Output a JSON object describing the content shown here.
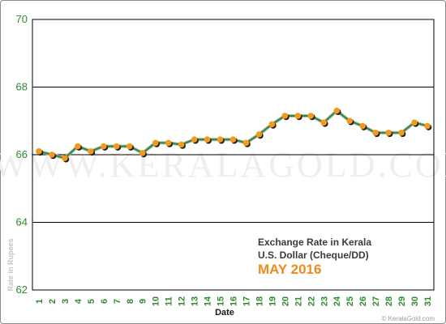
{
  "chart_data": {
    "type": "line",
    "title": "Exchange Rate in Kerala",
    "subtitle": "U.S. Dollar (Cheque/DD)",
    "period": "MAY 2016",
    "xlabel": "Date",
    "ylabel": "Rate in Rupees",
    "ylim": [
      62,
      70
    ],
    "yticks": [
      "62",
      "64",
      "66",
      "68",
      "70"
    ],
    "grid": true,
    "categories": [
      "1",
      "2",
      "3",
      "4",
      "5",
      "6",
      "7",
      "8",
      "9",
      "10",
      "11",
      "12",
      "13",
      "14",
      "15",
      "16",
      "17",
      "18",
      "19",
      "20",
      "21",
      "22",
      "23",
      "24",
      "25",
      "26",
      "27",
      "28",
      "29",
      "30",
      "31"
    ],
    "values": [
      66.1,
      66.0,
      65.9,
      66.25,
      66.1,
      66.25,
      66.25,
      66.25,
      66.05,
      66.35,
      66.35,
      66.3,
      66.45,
      66.45,
      66.45,
      66.45,
      66.35,
      66.6,
      66.9,
      67.15,
      67.15,
      67.15,
      66.95,
      67.3,
      67.0,
      66.85,
      66.65,
      66.65,
      66.65,
      66.95,
      66.85
    ],
    "colors": {
      "line": "#3f7f3f",
      "marker": "#f39a1c",
      "marker_shadow": "#1a1a1a",
      "grid": "#000000",
      "axis_text": "#2e8b2e"
    }
  },
  "watermark": "WWW.KERALAGOLD.COM",
  "credit": "© KeralaGold.com"
}
